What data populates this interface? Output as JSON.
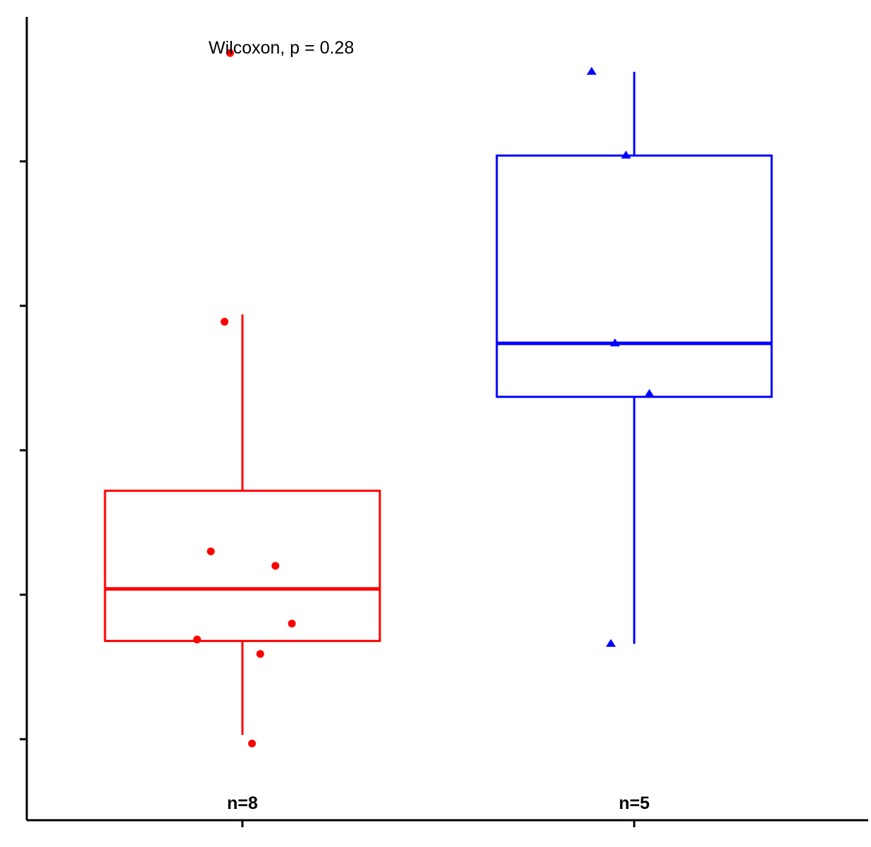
{
  "chart_data": {
    "type": "box",
    "title": "",
    "xlabel": "",
    "ylabel": "",
    "ylim": [
      0.4,
      5.75
    ],
    "y_ticks": [
      1,
      2,
      3,
      4,
      5
    ],
    "y_tick_labels_visible": false,
    "x_tick_labels_visible": false,
    "grid": false,
    "legend": "none",
    "annotation": "Wilcoxon, p = 0.28",
    "groups": [
      {
        "n_label": "n=8",
        "color": "#ff0000",
        "marker": "circle",
        "box": {
          "whisker_low": 1.03,
          "q1": 1.68,
          "median": 2.04,
          "q3": 2.72,
          "whisker_high": 3.94
        },
        "points": [
          {
            "jitter": -0.09,
            "value": 5.75
          },
          {
            "jitter": -0.13,
            "value": 3.89
          },
          {
            "jitter": -0.23,
            "value": 2.3
          },
          {
            "jitter": 0.24,
            "value": 2.2
          },
          {
            "jitter": 0.36,
            "value": 1.8
          },
          {
            "jitter": -0.33,
            "value": 1.69
          },
          {
            "jitter": 0.13,
            "value": 1.59
          },
          {
            "jitter": 0.07,
            "value": 0.97
          }
        ]
      },
      {
        "n_label": "n=5",
        "color": "#0000ff",
        "marker": "triangle",
        "box": {
          "whisker_low": 1.66,
          "q1": 3.37,
          "median": 3.74,
          "q3": 5.04,
          "whisker_high": 5.62
        },
        "points": [
          {
            "jitter": -0.31,
            "value": 5.62
          },
          {
            "jitter": -0.06,
            "value": 5.04
          },
          {
            "jitter": -0.14,
            "value": 3.74
          },
          {
            "jitter": 0.11,
            "value": 3.39
          },
          {
            "jitter": -0.17,
            "value": 1.66
          }
        ]
      }
    ]
  }
}
